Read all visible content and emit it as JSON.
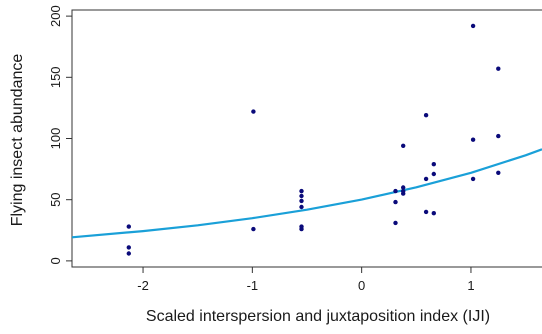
{
  "chart_data": {
    "type": "scatter",
    "title": "",
    "xlabel": "Scaled interspersion and juxtaposition index (IJI)",
    "ylabel": "Flying insect abundance",
    "xlim": [
      -2.65,
      1.65
    ],
    "ylim": [
      -5,
      205
    ],
    "x_ticks": [
      -2,
      -1,
      0,
      1
    ],
    "y_ticks": [
      0,
      50,
      100,
      150,
      200
    ],
    "grid": false,
    "legend": "none",
    "colors": {
      "points": "#0a0a7a",
      "fit": "#1aa0d8",
      "axis": "#333333"
    },
    "points": [
      {
        "x": -2.13,
        "y": 28
      },
      {
        "x": -2.13,
        "y": 11
      },
      {
        "x": -2.13,
        "y": 6
      },
      {
        "x": -0.99,
        "y": 122
      },
      {
        "x": -0.99,
        "y": 26
      },
      {
        "x": -0.55,
        "y": 57
      },
      {
        "x": -0.55,
        "y": 53
      },
      {
        "x": -0.55,
        "y": 49
      },
      {
        "x": -0.55,
        "y": 44
      },
      {
        "x": -0.55,
        "y": 28
      },
      {
        "x": -0.55,
        "y": 26
      },
      {
        "x": 0.31,
        "y": 57
      },
      {
        "x": 0.31,
        "y": 48
      },
      {
        "x": 0.31,
        "y": 31
      },
      {
        "x": 0.38,
        "y": 60
      },
      {
        "x": 0.38,
        "y": 57
      },
      {
        "x": 0.38,
        "y": 55
      },
      {
        "x": 0.38,
        "y": 94
      },
      {
        "x": 0.59,
        "y": 119
      },
      {
        "x": 0.59,
        "y": 67
      },
      {
        "x": 0.59,
        "y": 40
      },
      {
        "x": 0.66,
        "y": 79
      },
      {
        "x": 0.66,
        "y": 71
      },
      {
        "x": 0.66,
        "y": 39
      },
      {
        "x": 1.02,
        "y": 192
      },
      {
        "x": 1.02,
        "y": 99
      },
      {
        "x": 1.02,
        "y": 67
      },
      {
        "x": 1.25,
        "y": 157
      },
      {
        "x": 1.25,
        "y": 102
      },
      {
        "x": 1.25,
        "y": 72
      }
    ],
    "fit_line": {
      "model": "exponential",
      "x": [
        -2.65,
        -2.0,
        -1.5,
        -1.0,
        -0.5,
        0.0,
        0.5,
        1.0,
        1.5,
        1.65
      ],
      "y": [
        19.3,
        24.3,
        29.1,
        34.9,
        41.8,
        50.1,
        60.1,
        72.0,
        86.3,
        91.2
      ]
    }
  }
}
